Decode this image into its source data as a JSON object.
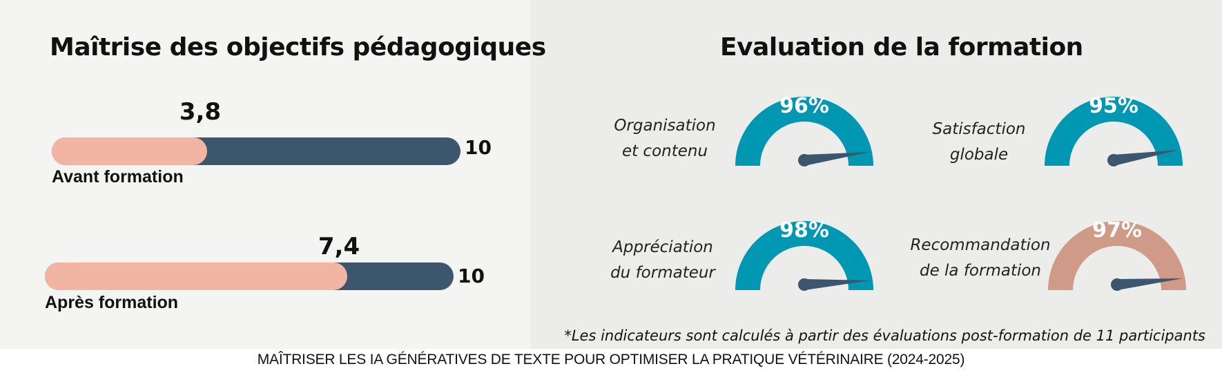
{
  "chart_data": [
    {
      "type": "bar",
      "title": "Maîtrise des objectifs pédagogiques",
      "categories": [
        "Avant formation",
        "Après formation"
      ],
      "values": [
        3.8,
        7.4
      ],
      "value_labels": [
        "3,8",
        "7,4"
      ],
      "max": 10,
      "max_label": "10",
      "orientation": "horizontal",
      "colors": {
        "fill": "#f2b5a3",
        "track": "#3c566d"
      }
    },
    {
      "type": "gauge",
      "title": "Evaluation de la formation",
      "gauges": [
        {
          "label_lines": [
            "Organisation",
            "et contenu"
          ],
          "value": 96,
          "value_label": "96%",
          "color": "#0097b2"
        },
        {
          "label_lines": [
            "Satisfaction",
            "globale"
          ],
          "value": 95,
          "value_label": "95%",
          "color": "#0097b2"
        },
        {
          "label_lines": [
            "Appréciation",
            "du formateur"
          ],
          "value": 98,
          "value_label": "98%",
          "color": "#0097b2"
        },
        {
          "label_lines": [
            "Recommandation",
            "de la formation"
          ],
          "value": 97,
          "value_label": "97%",
          "color": "#cf9b88"
        }
      ],
      "needle_color": "#3c566d"
    }
  ],
  "footnote": "*Les indicateurs sont calculés à partir des évaluations post-formation de 11 participants",
  "caption": "MAÎTRISER LES IA GÉNÉRATIVES DE TEXTE POUR OPTIMISER LA PRATIQUE VÉTÉRINAIRE (2024-2025)"
}
